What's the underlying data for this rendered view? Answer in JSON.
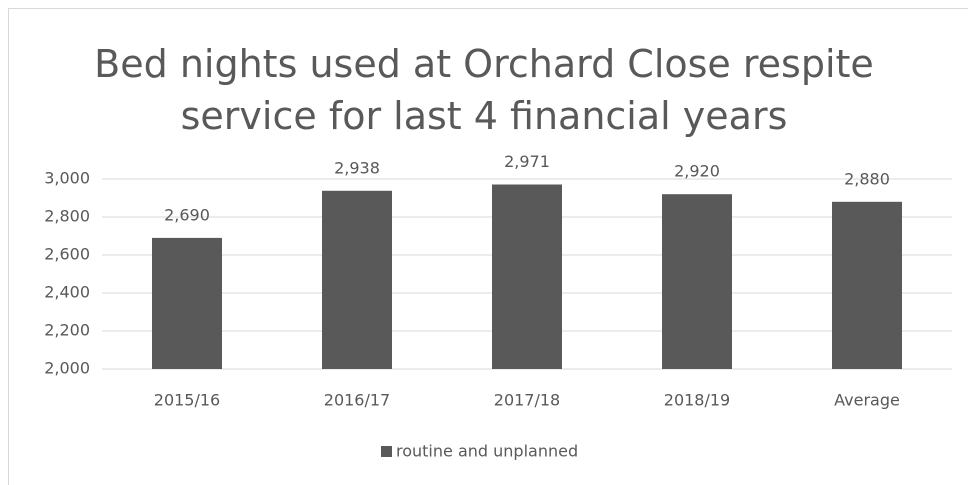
{
  "chart_data": {
    "type": "bar",
    "title": "Bed nights used at Orchard Close respite service for last 4 financial years",
    "categories": [
      "2015/16",
      "2016/17",
      "2017/18",
      "2018/19",
      "Average"
    ],
    "series": [
      {
        "name": "routine and unplanned",
        "color": "#595959",
        "values": [
          2690,
          2938,
          2971,
          2920,
          2880
        ],
        "value_labels": [
          "2,690",
          "2,938",
          "2,971",
          "2,920",
          "2,880"
        ]
      }
    ],
    "ylim": [
      2000,
      3000
    ],
    "yticks": [
      {
        "value": 2000,
        "label": "2,000"
      },
      {
        "value": 2200,
        "label": "2,200"
      },
      {
        "value": 2400,
        "label": "2,400"
      },
      {
        "value": 2600,
        "label": "2,600"
      },
      {
        "value": 2800,
        "label": "2,800"
      },
      {
        "value": 3000,
        "label": "3,000"
      }
    ],
    "grid": true,
    "legend": "bottom"
  }
}
